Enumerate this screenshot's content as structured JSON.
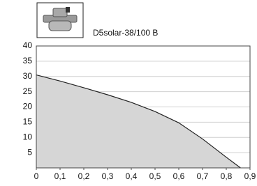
{
  "chart_data": {
    "type": "area",
    "title": "D5solar-38/100 B",
    "x": [
      0,
      0.1,
      0.2,
      0.3,
      0.4,
      0.5,
      0.6,
      0.7,
      0.8,
      0.86
    ],
    "values": [
      30.5,
      28.5,
      26.3,
      24,
      21.5,
      18.5,
      14.8,
      9.5,
      3.5,
      0
    ],
    "color": "#d6d6d6",
    "line_color": "#222222",
    "xlim": [
      0,
      0.9
    ],
    "ylim": [
      0,
      40
    ],
    "xticks": [
      0,
      {
        "value": 0.1,
        "label": "0,1"
      },
      {
        "value": 0.2,
        "label": "0,2"
      },
      {
        "value": 0.3,
        "label": "0,3"
      },
      {
        "value": 0.4,
        "label": "0,4"
      },
      {
        "value": 0.5,
        "label": "0,5"
      },
      {
        "value": 0.6,
        "label": "0,6"
      },
      {
        "value": 0.7,
        "label": "0,7"
      },
      {
        "value": 0.8,
        "label": "0,8"
      },
      {
        "value": 0.9,
        "label": "0,9"
      }
    ],
    "yticks": [
      5,
      10,
      15,
      20,
      25,
      30,
      35,
      40
    ],
    "grid": true
  }
}
